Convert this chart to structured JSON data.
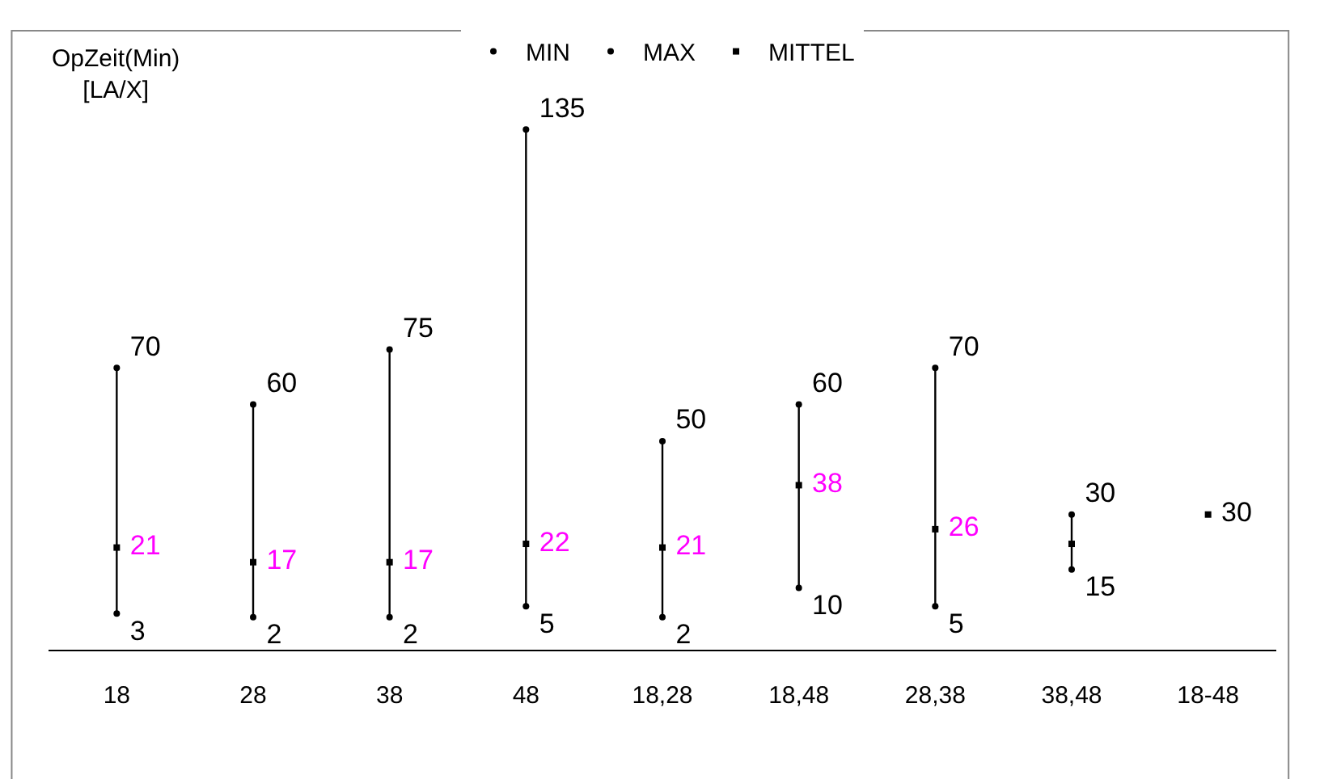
{
  "chart_data": {
    "type": "scatter",
    "ylabel": "OpZeit(Min)\n[LA/X]",
    "categories": [
      "18",
      "28",
      "38",
      "48",
      "18,28",
      "18,48",
      "28,38",
      "38,48",
      "18-48"
    ],
    "series": [
      {
        "name": "MIN",
        "color": "#000000",
        "marker": "circle",
        "values": [
          3,
          2,
          2,
          5,
          2,
          10,
          5,
          15,
          null
        ]
      },
      {
        "name": "MAX",
        "color": "#000000",
        "marker": "circle",
        "values": [
          70,
          60,
          75,
          135,
          50,
          60,
          70,
          30,
          null
        ]
      },
      {
        "name": "MITTEL",
        "color": "#000000",
        "marker": "square",
        "values": [
          21,
          17,
          17,
          22,
          21,
          38,
          26,
          22,
          30
        ],
        "value_labels": [
          "21",
          "17",
          "17",
          "22",
          "21",
          "38",
          "26",
          null,
          "30"
        ]
      }
    ],
    "data_labels": true,
    "tick_labels": "x",
    "legend": "top"
  }
}
